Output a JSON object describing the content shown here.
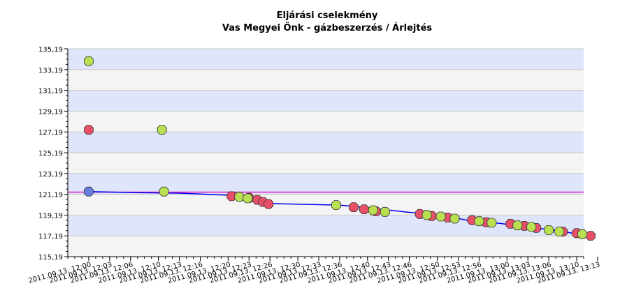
{
  "chart_data": {
    "type": "scatter",
    "title": "Eljárási cselekmény",
    "subtitle": "Vas Megyei Önk - gázbeszerzés / Árlejtés",
    "xlabel": "",
    "ylabel": "",
    "ylim": [
      115.19,
      135.19
    ],
    "y_ticks": [
      "115,19",
      "117,19",
      "119,19",
      "121,19",
      "123,19",
      "125,19",
      "127,19",
      "129,19",
      "131,19",
      "133,19",
      "135,19"
    ],
    "x_range_minutes": [
      "2011.09.13. 11:57",
      "2011.09.13. 13:11"
    ],
    "x_ticks": [
      "2011.09.13. 12:00",
      "2011.09.13. 12:03",
      "2011.09.13. 12:06",
      "2011.09.13. 12:10",
      "2011.09.13. 12:13",
      "2011.09.13. 12:16",
      "2011.09.13. 12:20",
      "2011.09.13. 12:23",
      "2011.09.13. 12:26",
      "2011.09.13. 12:30",
      "2011.09.13. 12:33",
      "2011.09.13. 12:36",
      "2011.09.13. 12:40",
      "2011.09.13. 12:43",
      "2011.09.13. 12:46",
      "2011.09.13. 12:50",
      "2011.09.13. 12:53",
      "2011.09.13. 12:56",
      "2011.09.13. 13:00",
      "2011.09.13. 13:03",
      "2011.09.13. 13:06",
      "2011.09.13. 13:10",
      "2011.09.13. 13:13"
    ],
    "reference_line": {
      "y": 121.4,
      "color": "#e020c0"
    },
    "best_price_line": {
      "color": "#0000ee",
      "points": [
        {
          "x": "12:00",
          "y": 121.45
        },
        {
          "x": "12:07",
          "y": 121.35
        },
        {
          "x": "12:13",
          "y": 121.3
        },
        {
          "x": "12:20",
          "y": 121.1
        },
        {
          "x": "12:23",
          "y": 120.9
        },
        {
          "x": "12:26",
          "y": 120.3
        },
        {
          "x": "12:36",
          "y": 120.15
        },
        {
          "x": "12:40",
          "y": 119.9
        },
        {
          "x": "12:44",
          "y": 119.6
        },
        {
          "x": "12:48",
          "y": 119.3
        },
        {
          "x": "12:52",
          "y": 119.0
        },
        {
          "x": "12:55",
          "y": 118.6
        },
        {
          "x": "12:59",
          "y": 118.4
        },
        {
          "x": "13:02",
          "y": 118.1
        },
        {
          "x": "13:06",
          "y": 117.8
        },
        {
          "x": "13:09",
          "y": 117.5
        },
        {
          "x": "13:11",
          "y": 117.2
        }
      ]
    },
    "series": [
      {
        "color": "#e8506a",
        "points": [
          {
            "x": "12:00",
            "y": 127.4
          },
          {
            "x": "12:20.5",
            "y": 121.0
          },
          {
            "x": "12:23",
            "y": 120.85
          },
          {
            "x": "12:24.2",
            "y": 120.65
          },
          {
            "x": "12:25",
            "y": 120.45
          },
          {
            "x": "12:25.8",
            "y": 120.25
          },
          {
            "x": "12:38",
            "y": 119.95
          },
          {
            "x": "12:39.5",
            "y": 119.75
          },
          {
            "x": "12:41.2",
            "y": 119.55
          },
          {
            "x": "12:47.5",
            "y": 119.3
          },
          {
            "x": "12:49.2",
            "y": 119.1
          },
          {
            "x": "12:51.5",
            "y": 118.95
          },
          {
            "x": "12:55",
            "y": 118.7
          },
          {
            "x": "12:57",
            "y": 118.5
          },
          {
            "x": "13:00.5",
            "y": 118.35
          },
          {
            "x": "13:02.5",
            "y": 118.15
          },
          {
            "x": "13:04.2",
            "y": 117.95
          },
          {
            "x": "13:08",
            "y": 117.6
          },
          {
            "x": "13:10",
            "y": 117.45
          },
          {
            "x": "13:12",
            "y": 117.2
          }
        ]
      },
      {
        "color": "#b8e050",
        "points": [
          {
            "x": "12:00",
            "y": 134.0
          },
          {
            "x": "12:10.5",
            "y": 127.4
          },
          {
            "x": "12:10.8",
            "y": 121.45
          },
          {
            "x": "12:21.6",
            "y": 120.95
          },
          {
            "x": "12:22.8",
            "y": 120.8
          },
          {
            "x": "12:35.5",
            "y": 120.15
          },
          {
            "x": "12:40.8",
            "y": 119.65
          },
          {
            "x": "12:42.5",
            "y": 119.5
          },
          {
            "x": "12:48.5",
            "y": 119.2
          },
          {
            "x": "12:50.5",
            "y": 119.05
          },
          {
            "x": "12:52.5",
            "y": 118.85
          },
          {
            "x": "12:56",
            "y": 118.6
          },
          {
            "x": "12:57.8",
            "y": 118.45
          },
          {
            "x": "13:01.5",
            "y": 118.2
          },
          {
            "x": "13:03.5",
            "y": 118.05
          },
          {
            "x": "13:06",
            "y": 117.75
          },
          {
            "x": "13:07.5",
            "y": 117.6
          },
          {
            "x": "13:10.8",
            "y": 117.35
          }
        ]
      },
      {
        "color": "#6a7de0",
        "points": [
          {
            "x": "12:00",
            "y": 121.45
          }
        ]
      }
    ]
  }
}
